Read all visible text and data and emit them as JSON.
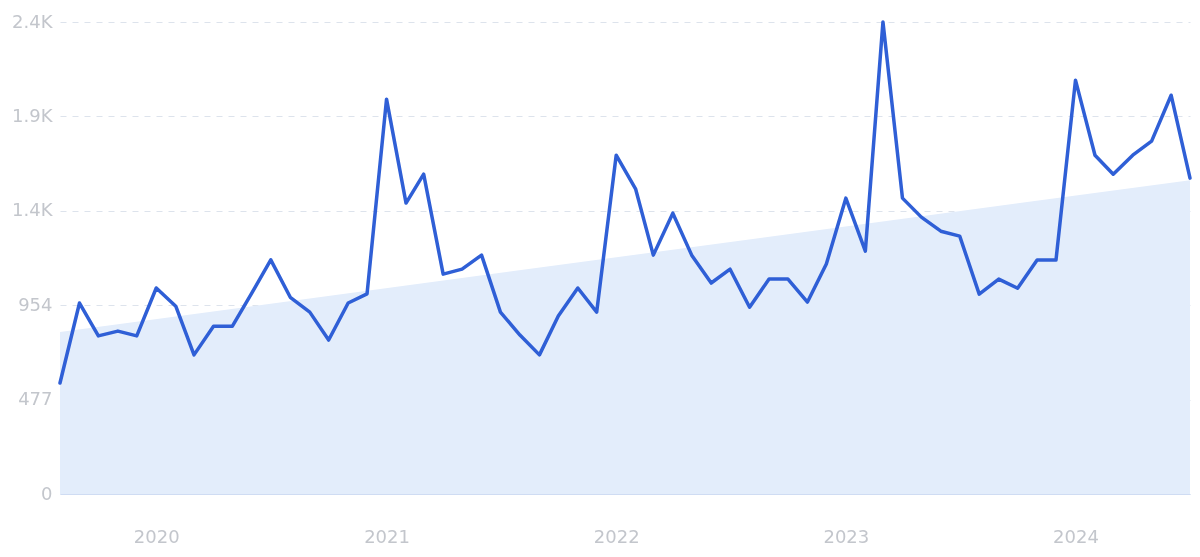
{
  "chart_data": {
    "type": "line",
    "x": [
      "2019-08",
      "2019-09",
      "2019-10",
      "2019-11",
      "2019-12",
      "2020-01",
      "2020-02",
      "2020-03",
      "2020-04",
      "2020-05",
      "2020-06",
      "2020-07",
      "2020-08",
      "2020-09",
      "2020-10",
      "2020-11",
      "2020-12",
      "2021-01",
      "2021-02",
      "2021-03",
      "2021-04",
      "2021-05",
      "2021-06",
      "2021-07",
      "2021-08",
      "2021-09",
      "2021-10",
      "2021-11",
      "2021-12",
      "2022-01",
      "2022-02",
      "2022-03",
      "2022-04",
      "2022-05",
      "2022-06",
      "2022-07",
      "2022-08",
      "2022-09",
      "2022-10",
      "2022-11",
      "2022-12",
      "2023-01",
      "2023-02",
      "2023-03",
      "2023-04",
      "2023-05",
      "2023-06",
      "2023-07",
      "2023-08",
      "2023-09",
      "2023-10",
      "2023-11",
      "2023-12",
      "2024-01",
      "2024-02",
      "2024-03",
      "2024-04",
      "2024-05",
      "2024-06",
      "2024-07"
    ],
    "series": [
      {
        "type": "area",
        "color": "#e3edfb",
        "x": [
          "2019-08",
          "2024-07"
        ],
        "values": [
          818,
          1586
        ]
      },
      {
        "type": "line",
        "color": "#2f5fd6",
        "values": [
          561,
          965,
          799,
          823,
          799,
          1041,
          949,
          703,
          848,
          848,
          1016,
          1183,
          994,
          919,
          778,
          965,
          1011,
          1995,
          1470,
          1616,
          1111,
          1136,
          1207,
          919,
          803,
          703,
          899,
          1041,
          919,
          1712,
          1540,
          1207,
          1419,
          1207,
          1066,
          1136,
          944,
          1086,
          1086,
          970,
          1162,
          1495,
          1227,
          2385,
          1495,
          1399,
          1328,
          1303,
          1010,
          1086,
          1040,
          1182,
          1182,
          2091,
          1712,
          1616,
          1712,
          1783,
          2015,
          1596
        ]
      }
    ],
    "xlim": [
      "2019-08",
      "2024-07"
    ],
    "xticks": [
      "2020",
      "2021",
      "2022",
      "2023",
      "2024"
    ],
    "ylim": [
      0,
      2385
    ],
    "yticks": [
      0,
      477,
      954,
      {
        "value": 1431,
        "label": "1.4K"
      },
      {
        "value": 1908,
        "label": "1.9K"
      },
      {
        "value": 2385,
        "label": "2.4K"
      }
    ],
    "grid": "y"
  }
}
